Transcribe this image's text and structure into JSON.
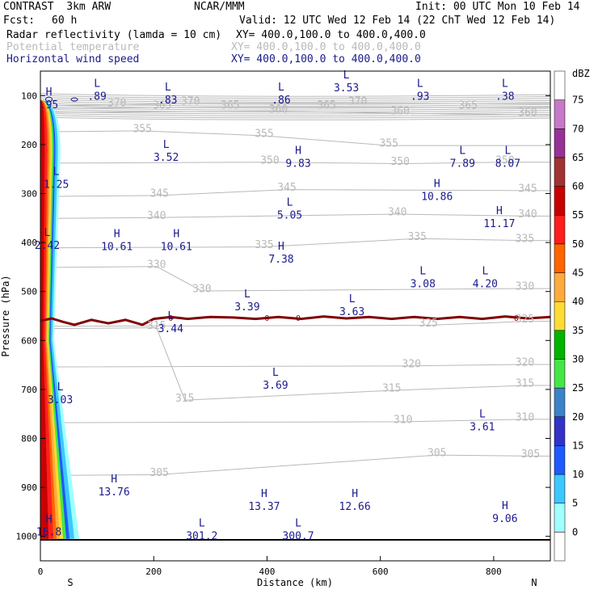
{
  "header": {
    "title_left": "CONTRAST  3km ARW",
    "title_center": "NCAR/MMM",
    "init": "Init: 00 UTC Mon 10 Feb 14",
    "fcst_label": "Fcst:",
    "fcst_value": "60 h",
    "valid": "Valid: 12 UTC Wed 12 Feb 14 (22 ChT Wed 12 Feb 14)",
    "fields": [
      {
        "name": "Radar reflectivity (lamda = 10 cm)",
        "xy": "XY= 400.0,100.0 to 400.0,400.0",
        "color": "#000000"
      },
      {
        "name": "Potential temperature",
        "xy": "XY= 400.0,100.0 to 400.0,400.0",
        "color": "#b9b9b9"
      },
      {
        "name": "Horizontal wind speed",
        "xy": "XY= 400.0,100.0 to 400.0,400.0",
        "color": "#1a1a8c"
      }
    ]
  },
  "chart_data": {
    "type": "contour-cross-section",
    "xlabel": "Distance (km)",
    "ylabel": "Pressure (hPa)",
    "xlim": [
      0,
      900
    ],
    "ylim": [
      1050,
      50
    ],
    "x_ticks": [
      0,
      200,
      400,
      600,
      800
    ],
    "y_ticks": [
      100,
      200,
      300,
      400,
      500,
      600,
      700,
      800,
      900,
      1000
    ],
    "x_end_labels": {
      "left": "S",
      "right": "N"
    },
    "colorbar": {
      "unit": "dBZ",
      "levels": [
        0,
        5,
        10,
        15,
        20,
        25,
        30,
        35,
        40,
        45,
        50,
        55,
        60,
        65,
        70,
        75
      ],
      "colors": [
        "#ffffff",
        "#a0ffff",
        "#3cc8ff",
        "#1e5aff",
        "#3232c8",
        "#3c82c8",
        "#46e646",
        "#00b400",
        "#ffdc32",
        "#ffaa3c",
        "#ff6400",
        "#ff1e1e",
        "#c80000",
        "#a03232",
        "#963296",
        "#c878c8",
        "#ffffff"
      ]
    },
    "theta_labels": [
      {
        "text": "370",
        "x": 135,
        "p": 115
      },
      {
        "text": "365",
        "x": 215,
        "p": 120
      },
      {
        "text": "370",
        "x": 265,
        "p": 112
      },
      {
        "text": "365",
        "x": 335,
        "p": 120
      },
      {
        "text": "360",
        "x": 420,
        "p": 128
      },
      {
        "text": "365",
        "x": 505,
        "p": 120
      },
      {
        "text": "370",
        "x": 560,
        "p": 112
      },
      {
        "text": "365",
        "x": 755,
        "p": 120
      },
      {
        "text": "360",
        "x": 860,
        "p": 135
      },
      {
        "text": "360",
        "x": 635,
        "p": 132
      },
      {
        "text": "355",
        "x": 180,
        "p": 168
      },
      {
        "text": "355",
        "x": 395,
        "p": 178
      },
      {
        "text": "355",
        "x": 615,
        "p": 198
      },
      {
        "text": "350",
        "x": 405,
        "p": 232
      },
      {
        "text": "350",
        "x": 635,
        "p": 235
      },
      {
        "text": "350",
        "x": 820,
        "p": 232
      },
      {
        "text": "345",
        "x": 210,
        "p": 300
      },
      {
        "text": "345",
        "x": 435,
        "p": 288
      },
      {
        "text": "345",
        "x": 860,
        "p": 290
      },
      {
        "text": "340",
        "x": 205,
        "p": 345
      },
      {
        "text": "340",
        "x": 630,
        "p": 338
      },
      {
        "text": "340",
        "x": 860,
        "p": 342
      },
      {
        "text": "335",
        "x": 395,
        "p": 405
      },
      {
        "text": "335",
        "x": 665,
        "p": 388
      },
      {
        "text": "335",
        "x": 855,
        "p": 392
      },
      {
        "text": "330",
        "x": 205,
        "p": 445
      },
      {
        "text": "330",
        "x": 285,
        "p": 495
      },
      {
        "text": "330",
        "x": 855,
        "p": 490
      },
      {
        "text": "325",
        "x": 685,
        "p": 565
      },
      {
        "text": "325",
        "x": 855,
        "p": 557
      },
      {
        "text": "320",
        "x": 655,
        "p": 648
      },
      {
        "text": "320",
        "x": 855,
        "p": 645
      },
      {
        "text": "315",
        "x": 205,
        "p": 570
      },
      {
        "text": "315",
        "x": 255,
        "p": 718
      },
      {
        "text": "315",
        "x": 620,
        "p": 698
      },
      {
        "text": "315",
        "x": 855,
        "p": 688
      },
      {
        "text": "310",
        "x": 640,
        "p": 762
      },
      {
        "text": "310",
        "x": 855,
        "p": 757
      },
      {
        "text": "305",
        "x": 210,
        "p": 870
      },
      {
        "text": "305",
        "x": 700,
        "p": 830
      },
      {
        "text": "305",
        "x": 865,
        "p": 832
      }
    ],
    "wind_extrema": [
      {
        "type": "L",
        "value": ".89",
        "x": 100,
        "p": 95
      },
      {
        "type": "L",
        "value": ".83",
        "x": 225,
        "p": 103
      },
      {
        "type": "L",
        "value": ".86",
        "x": 425,
        "p": 103
      },
      {
        "type": "L",
        "value": "3.53",
        "x": 540,
        "p": 78
      },
      {
        "type": "L",
        "value": ".93",
        "x": 670,
        "p": 95
      },
      {
        "type": "L",
        "value": ".38",
        "x": 820,
        "p": 95
      },
      {
        "type": "H",
        "value": ".95",
        "x": 15,
        "p": 113
      },
      {
        "type": "L",
        "value": "3.52",
        "x": 222,
        "p": 220
      },
      {
        "type": "H",
        "value": "9.83",
        "x": 455,
        "p": 232
      },
      {
        "type": "L",
        "value": "7.89",
        "x": 745,
        "p": 232
      },
      {
        "type": "L",
        "value": "8.07",
        "x": 825,
        "p": 232
      },
      {
        "type": "L",
        "value": "1.25",
        "x": 28,
        "p": 275
      },
      {
        "type": "H",
        "value": "10.86",
        "x": 700,
        "p": 300
      },
      {
        "type": "L",
        "value": "5.05",
        "x": 440,
        "p": 338
      },
      {
        "type": "H",
        "value": "11.17",
        "x": 810,
        "p": 355
      },
      {
        "type": "L",
        "value": "2.42",
        "x": 12,
        "p": 400
      },
      {
        "type": "H",
        "value": "10.61",
        "x": 135,
        "p": 402
      },
      {
        "type": "H",
        "value": "10.61",
        "x": 240,
        "p": 402
      },
      {
        "type": "H",
        "value": "7.38",
        "x": 425,
        "p": 428
      },
      {
        "type": "L",
        "value": "3.08",
        "x": 675,
        "p": 478
      },
      {
        "type": "L",
        "value": "4.20",
        "x": 785,
        "p": 478
      },
      {
        "type": "L",
        "value": "3.39",
        "x": 365,
        "p": 525
      },
      {
        "type": "L",
        "value": "3.63",
        "x": 550,
        "p": 535
      },
      {
        "type": "L",
        "value": "3.44",
        "x": 230,
        "p": 570
      },
      {
        "type": "L",
        "value": "3.69",
        "x": 415,
        "p": 685
      },
      {
        "type": "L",
        "value": "3.03",
        "x": 35,
        "p": 715
      },
      {
        "type": "L",
        "value": "3.61",
        "x": 780,
        "p": 770
      },
      {
        "type": "H",
        "value": "13.76",
        "x": 130,
        "p": 903
      },
      {
        "type": "H",
        "value": "13.37",
        "x": 395,
        "p": 933
      },
      {
        "type": "H",
        "value": "12.66",
        "x": 555,
        "p": 933
      },
      {
        "type": "H",
        "value": "9.06",
        "x": 820,
        "p": 958
      },
      {
        "type": "H",
        "value": "16.8",
        "x": 15,
        "p": 985
      },
      {
        "type": "L",
        "value": "301.2",
        "x": 285,
        "p": 993
      },
      {
        "type": "L",
        "value": "300.7",
        "x": 455,
        "p": 993
      }
    ],
    "zero_contour": {
      "label": "0",
      "points": [
        [
          0,
          560
        ],
        [
          20,
          555
        ],
        [
          40,
          562
        ],
        [
          60,
          568
        ],
        [
          90,
          558
        ],
        [
          120,
          565
        ],
        [
          150,
          558
        ],
        [
          180,
          568
        ],
        [
          200,
          556
        ],
        [
          230,
          552
        ],
        [
          260,
          556
        ],
        [
          300,
          552
        ],
        [
          340,
          553
        ],
        [
          380,
          556
        ],
        [
          420,
          552
        ],
        [
          460,
          556
        ],
        [
          500,
          551
        ],
        [
          540,
          555
        ],
        [
          580,
          552
        ],
        [
          620,
          556
        ],
        [
          660,
          552
        ],
        [
          700,
          556
        ],
        [
          740,
          552
        ],
        [
          780,
          556
        ],
        [
          820,
          551
        ],
        [
          860,
          555
        ],
        [
          900,
          552
        ]
      ],
      "label_x": [
        230,
        400,
        455,
        840
      ]
    }
  }
}
